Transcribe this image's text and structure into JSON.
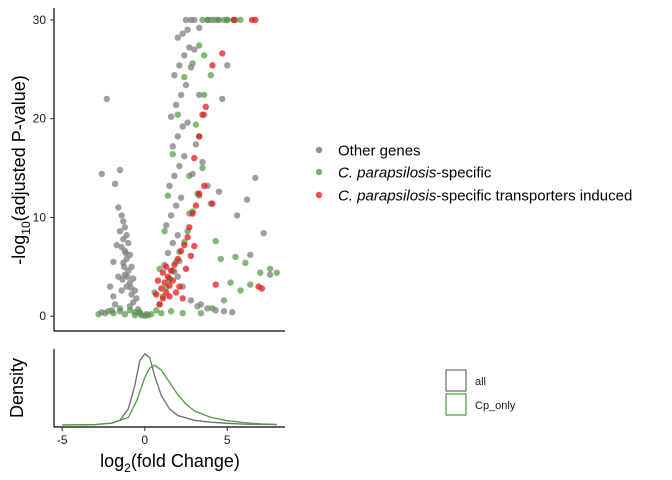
{
  "chart_data": [
    {
      "type": "scatter",
      "xlabel": "",
      "ylabel": "-log10(adjusted P-value)",
      "ylabel_parts": {
        "pre": "-log",
        "sub": "10",
        "post": "(adjusted P-value)"
      },
      "xlim": [
        -5.5,
        8.5
      ],
      "ylim": [
        -1.5,
        31.2
      ],
      "y_ticks": [
        0,
        10,
        20,
        30
      ],
      "x_ticks": [
        -5,
        0,
        5
      ],
      "grid": false,
      "legend_position": "right",
      "legend": [
        {
          "series": 0,
          "text_italic": "",
          "text": "Other genes"
        },
        {
          "series": 1,
          "text_italic": "C. parapsilosis",
          "text": "-specific"
        },
        {
          "series": 2,
          "text_italic": "C. parapsilosis",
          "text": "-specific transporters induced"
        }
      ],
      "series": [
        {
          "color": "#7f7f7f",
          "points": [
            [
              -2.3,
              22
            ],
            [
              -1.5,
              14.8
            ],
            [
              -2.6,
              14.4
            ],
            [
              -1.8,
              13.4
            ],
            [
              -1.6,
              11
            ],
            [
              -1.4,
              10.2
            ],
            [
              -1.3,
              9.6
            ],
            [
              -1.2,
              9
            ],
            [
              -1.5,
              8.6
            ],
            [
              -1.1,
              8.2
            ],
            [
              -1.3,
              7.8
            ],
            [
              -1.0,
              7.4
            ],
            [
              -1.4,
              7
            ],
            [
              -1.2,
              6.6
            ],
            [
              -0.9,
              6.2
            ],
            [
              -1.1,
              5.8
            ],
            [
              -1.3,
              5.4
            ],
            [
              -0.8,
              5
            ],
            [
              -1.0,
              4.6
            ],
            [
              -1.2,
              4.2
            ],
            [
              -0.7,
              3.8
            ],
            [
              -0.9,
              3.4
            ],
            [
              -1.1,
              3
            ],
            [
              -0.6,
              2.6
            ],
            [
              -0.8,
              2.2
            ],
            [
              -1.4,
              2.6
            ],
            [
              -0.5,
              1.8
            ],
            [
              -0.7,
              1.4
            ],
            [
              -0.9,
              1
            ],
            [
              -0.4,
              0.7
            ],
            [
              -0.6,
              0.4
            ],
            [
              -0.3,
              0.3
            ],
            [
              -1.5,
              0.5
            ],
            [
              -2.0,
              0.6
            ],
            [
              -2.4,
              0.3
            ],
            [
              -1.8,
              1.2
            ],
            [
              -0.2,
              0.1
            ],
            [
              0.1,
              0.2
            ],
            [
              0.2,
              0.1
            ],
            [
              -2.6,
              0.4
            ],
            [
              -1.7,
              7.2
            ],
            [
              -1.9,
              5.5
            ],
            [
              -1.6,
              4
            ],
            [
              -2.1,
              3
            ],
            [
              -1.9,
              2
            ],
            [
              -1.25,
              5
            ],
            [
              -1.05,
              4
            ],
            [
              -0.85,
              2.9
            ],
            [
              -1.35,
              3.7
            ],
            [
              -1.15,
              6.4
            ],
            [
              1.2,
              5.2
            ],
            [
              2.0,
              4.0
            ],
            [
              2.3,
              3
            ],
            [
              2.8,
              1.6
            ],
            [
              3.2,
              1
            ],
            [
              3.8,
              0.8
            ],
            [
              4.3,
              0.6
            ],
            [
              4.8,
              0.5
            ],
            [
              5.3,
              0.4
            ],
            [
              3.4,
              1.2
            ],
            [
              1.5,
              3.8
            ],
            [
              1.8,
              4.5
            ],
            [
              2.1,
              5.6
            ],
            [
              1.4,
              6.4
            ],
            [
              1.7,
              7.4
            ],
            [
              2.0,
              8.2
            ],
            [
              1.3,
              9.2
            ],
            [
              1.6,
              10.2
            ],
            [
              1.9,
              11.2
            ],
            [
              2.2,
              12
            ],
            [
              1.5,
              13.2
            ],
            [
              1.8,
              14.2
            ],
            [
              2.1,
              15.2
            ],
            [
              2.4,
              16.2
            ],
            [
              1.7,
              17.2
            ],
            [
              2.0,
              18.2
            ],
            [
              2.3,
              19.2
            ],
            [
              1.6,
              20.2
            ],
            [
              1.9,
              21.4
            ],
            [
              2.2,
              22.4
            ],
            [
              2.5,
              23.4
            ],
            [
              1.8,
              24.4
            ],
            [
              2.1,
              25.4
            ],
            [
              2.4,
              26.4
            ],
            [
              2.7,
              27.2
            ],
            [
              2.0,
              28.2
            ],
            [
              2.3,
              28.6
            ],
            [
              3.0,
              27.0
            ],
            [
              2.8,
              25.2
            ],
            [
              3.3,
              22.4
            ],
            [
              3.6,
              20.4
            ],
            [
              2.6,
              19.6
            ],
            [
              3.1,
              17.4
            ],
            [
              3.5,
              15.6
            ],
            [
              2.9,
              14.4
            ],
            [
              3.8,
              13.2
            ],
            [
              3.3,
              12.2
            ],
            [
              4.0,
              11.4
            ],
            [
              2.7,
              10.4
            ],
            [
              4.5,
              12.6
            ],
            [
              5.0,
              25.4
            ],
            [
              4.7,
              22
            ],
            [
              5.6,
              10.2
            ],
            [
              6.2,
              11.8
            ],
            [
              6.7,
              14
            ],
            [
              7.2,
              8.4
            ],
            [
              6.4,
              6.2
            ],
            [
              7.6,
              4.2
            ],
            [
              2.5,
              30
            ],
            [
              3.0,
              30
            ],
            [
              3.5,
              30
            ],
            [
              4.0,
              30
            ],
            [
              4.5,
              30
            ],
            [
              5.0,
              30
            ],
            [
              5.5,
              30
            ],
            [
              2.8,
              30
            ],
            [
              3.8,
              30
            ],
            [
              4.2,
              30
            ],
            [
              3.3,
              29.2
            ],
            [
              2.6,
              29.0
            ]
          ]
        },
        {
          "color": "#4d9a3d",
          "points": [
            [
              -2.8,
              0.2
            ],
            [
              -1.9,
              0.3
            ],
            [
              -1.2,
              0.2
            ],
            [
              -0.6,
              0.1
            ],
            [
              0.0,
              0.05
            ],
            [
              0.4,
              0.2
            ],
            [
              0.7,
              0.6
            ],
            [
              0.9,
              1.2
            ],
            [
              1.1,
              2.0
            ],
            [
              1.3,
              2.9
            ],
            [
              1.5,
              3.7
            ],
            [
              1.7,
              4.6
            ],
            [
              1.9,
              5.5
            ],
            [
              2.1,
              6.5
            ],
            [
              2.4,
              7.5
            ],
            [
              2.6,
              8.6
            ],
            [
              2.9,
              10.6
            ],
            [
              3.2,
              12.4
            ],
            [
              3.5,
              15.0
            ],
            [
              3.3,
              18.2
            ],
            [
              3.6,
              22.4
            ],
            [
              4.0,
              24.4
            ],
            [
              3.1,
              19.4
            ],
            [
              2.7,
              14.2
            ],
            [
              4.3,
              7.6
            ],
            [
              4.6,
              5.8
            ],
            [
              5.2,
              3.4
            ],
            [
              5.8,
              2.6
            ],
            [
              6.4,
              3.2
            ],
            [
              7.0,
              4.4
            ],
            [
              7.6,
              4.8
            ],
            [
              8.0,
              4.4
            ],
            [
              6.1,
              5.4
            ],
            [
              5.5,
              6.0
            ],
            [
              4.8,
              1.6
            ],
            [
              4.1,
              0.8
            ],
            [
              3.4,
              0.3
            ],
            [
              2.3,
              0.3
            ],
            [
              1.6,
              0.5
            ],
            [
              1.0,
              0.3
            ],
            [
              3.8,
              30
            ],
            [
              4.4,
              30
            ],
            [
              5.0,
              30
            ],
            [
              5.4,
              30
            ],
            [
              5.8,
              30
            ],
            [
              4.8,
              30
            ],
            [
              3.6,
              26.4
            ],
            [
              3.3,
              27.4
            ],
            [
              2.9,
              25.6
            ],
            [
              2.4,
              24.2
            ],
            [
              2.0,
              20.4
            ],
            [
              1.7,
              16.4
            ],
            [
              1.4,
              12.2
            ],
            [
              1.2,
              8.6
            ],
            [
              0.9,
              4.8
            ],
            [
              0.6,
              2.4
            ],
            [
              -0.3,
              0.4
            ],
            [
              -0.9,
              0.6
            ],
            [
              -1.5,
              0.8
            ],
            [
              -2.2,
              0.5
            ]
          ]
        },
        {
          "color": "#e41a1c",
          "points": [
            [
              0.9,
              1.2
            ],
            [
              1.1,
              1.8
            ],
            [
              1.3,
              2.4
            ],
            [
              1.5,
              3.1
            ],
            [
              1.7,
              3.6
            ],
            [
              1.0,
              2.8
            ],
            [
              1.2,
              3.4
            ],
            [
              1.4,
              4.0
            ],
            [
              1.6,
              4.6
            ],
            [
              1.8,
              5.2
            ],
            [
              2.0,
              5.8
            ],
            [
              2.2,
              6.6
            ],
            [
              2.4,
              7.2
            ],
            [
              2.6,
              8.0
            ],
            [
              0.8,
              3.6
            ],
            [
              1.1,
              4.4
            ],
            [
              1.3,
              5.0
            ],
            [
              1.5,
              2.0
            ],
            [
              1.9,
              2.4
            ],
            [
              2.1,
              3.0
            ],
            [
              2.3,
              1.8
            ],
            [
              0.7,
              2.2
            ],
            [
              2.5,
              4.8
            ],
            [
              2.7,
              9.0
            ],
            [
              2.9,
              10.4
            ],
            [
              3.1,
              11.2
            ],
            [
              3.3,
              12.4
            ],
            [
              3.6,
              13.2
            ],
            [
              4.1,
              11.4
            ],
            [
              3.0,
              16.0
            ],
            [
              3.3,
              18.2
            ],
            [
              3.5,
              20.4
            ],
            [
              3.7,
              21.2
            ],
            [
              4.1,
              25.4
            ],
            [
              4.7,
              26.6
            ],
            [
              6.5,
              30
            ],
            [
              6.7,
              30
            ],
            [
              5.4,
              30
            ],
            [
              7.1,
              2.8
            ],
            [
              6.9,
              3.0
            ],
            [
              4.3,
              3.2
            ],
            [
              2.8,
              6.1
            ],
            [
              3.0,
              7.1
            ]
          ]
        }
      ]
    },
    {
      "type": "line",
      "xlabel": "log2(fold Change)",
      "xlabel_parts": {
        "pre": "log",
        "sub": "2",
        "post": "(fold Change)"
      },
      "ylabel": "Density",
      "xlim": [
        -5.5,
        8.5
      ],
      "x_ticks": [
        -5,
        0,
        5
      ],
      "legend_position": "right",
      "series": [
        {
          "name": "all",
          "color": "#6e6e6e",
          "x": [
            -5,
            -3,
            -2,
            -1.5,
            -1,
            -0.6,
            -0.3,
            0,
            0.3,
            0.6,
            1,
            1.5,
            2,
            3,
            4,
            5,
            6,
            7,
            8
          ],
          "y": [
            0.0,
            0.005,
            0.02,
            0.05,
            0.17,
            0.42,
            0.68,
            0.75,
            0.71,
            0.52,
            0.31,
            0.17,
            0.1,
            0.05,
            0.03,
            0.018,
            0.01,
            0.006,
            0.004
          ]
        },
        {
          "name": "Cp_only",
          "color": "#4d9a3d",
          "x": [
            -5,
            -3,
            -2,
            -1,
            -0.5,
            0,
            0.3,
            0.6,
            1,
            1.5,
            2,
            2.5,
            3,
            4,
            5,
            6,
            7,
            8
          ],
          "y": [
            0.0,
            0.004,
            0.02,
            0.08,
            0.25,
            0.5,
            0.6,
            0.63,
            0.58,
            0.45,
            0.32,
            0.22,
            0.15,
            0.08,
            0.045,
            0.025,
            0.012,
            0.006
          ]
        }
      ]
    }
  ]
}
